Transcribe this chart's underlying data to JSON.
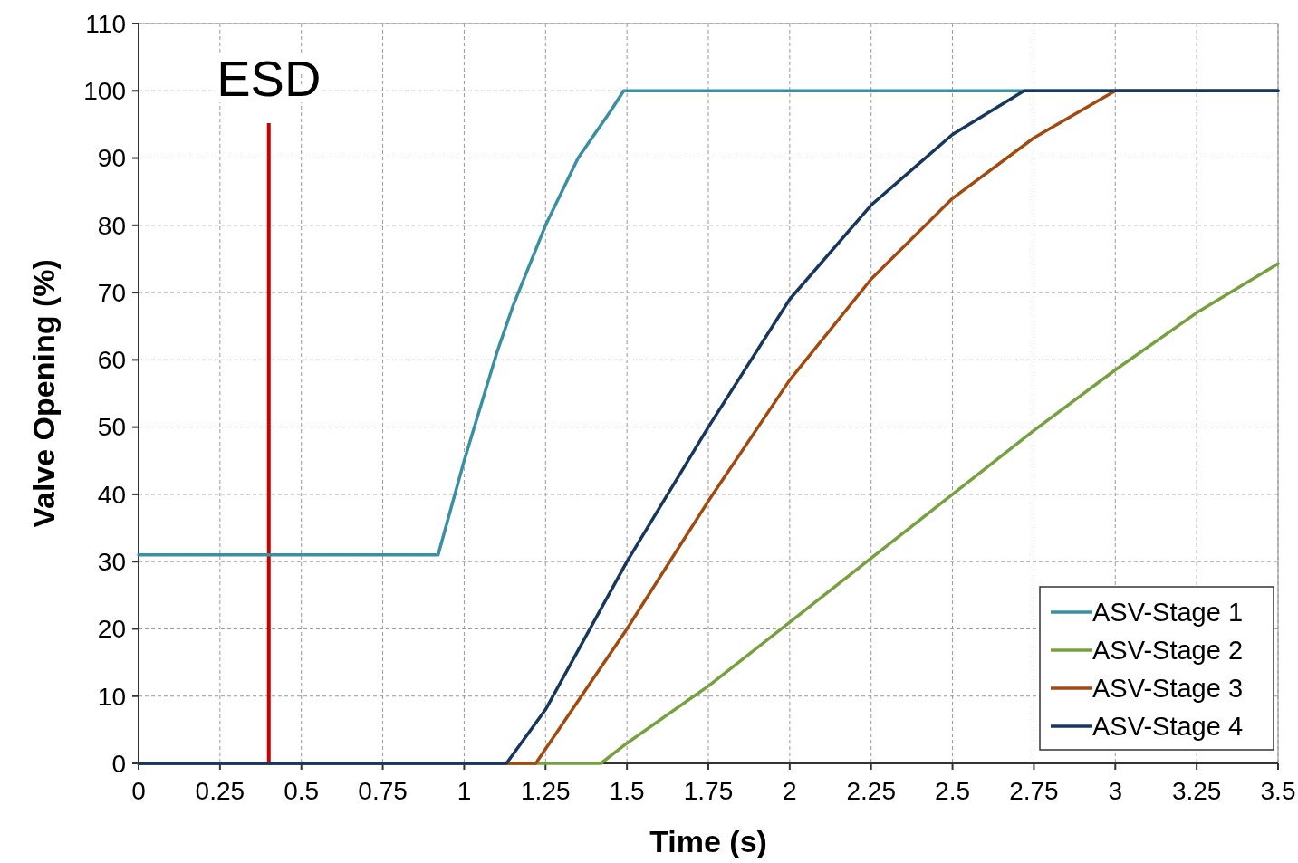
{
  "chart_data": {
    "type": "line",
    "xlabel": "Time (s)",
    "ylabel": "Valve Opening (%)",
    "xlim": [
      0,
      3.5
    ],
    "xticks": [
      0,
      0.25,
      0.5,
      0.75,
      1,
      1.25,
      1.5,
      1.75,
      2,
      2.25,
      2.5,
      2.75,
      3,
      3.25,
      3.5
    ],
    "ylim": [
      0,
      110
    ],
    "yticks": [
      0,
      10,
      20,
      30,
      40,
      50,
      60,
      70,
      80,
      90,
      100,
      110
    ],
    "grid": true,
    "legend": "bottom right",
    "marker": "none",
    "line_style": "solid",
    "ref_lines": [
      {
        "axis": "x",
        "value": 0.4,
        "label": "ESD",
        "color": "#cc0000"
      }
    ],
    "series": [
      {
        "name": "ASV-Stage 1",
        "color": "#3a8fa3",
        "x": [
          0,
          0.92,
          1,
          1.1,
          1.15,
          1.25,
          1.35,
          1.45,
          1.49,
          3.5
        ],
        "values": [
          31,
          31,
          45,
          61,
          68,
          80,
          90,
          97,
          100,
          100
        ]
      },
      {
        "name": "ASV-Stage 2",
        "color": "#77a040",
        "x": [
          0,
          1.42,
          1.5,
          1.75,
          2,
          2.25,
          2.5,
          2.75,
          3,
          3.25,
          3.5
        ],
        "values": [
          0,
          0,
          3,
          11.5,
          21,
          30.5,
          40,
          49.5,
          58.5,
          67,
          74.3
        ]
      },
      {
        "name": "ASV-Stage 3",
        "color": "#a04a10",
        "x": [
          0,
          1.22,
          1.5,
          1.75,
          2,
          2.25,
          2.5,
          2.75,
          3,
          3.5
        ],
        "values": [
          0,
          0,
          20,
          39,
          57,
          72,
          84,
          93,
          100,
          100
        ]
      },
      {
        "name": "ASV-Stage 4",
        "color": "#17375e",
        "x": [
          0,
          1.13,
          1.25,
          1.5,
          1.75,
          2,
          2.25,
          2.5,
          2.72,
          3.5
        ],
        "values": [
          0,
          0,
          8,
          30,
          50,
          69,
          83,
          93.5,
          100,
          100
        ]
      }
    ]
  }
}
